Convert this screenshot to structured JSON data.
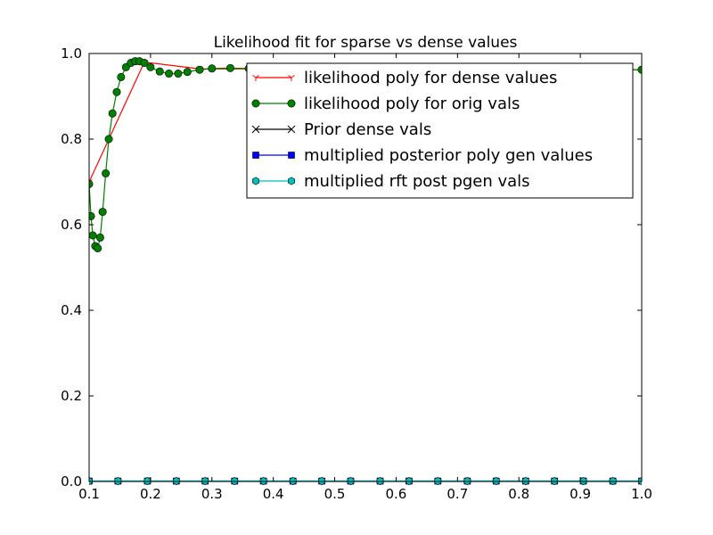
{
  "chart_data": {
    "type": "line",
    "title": "Likelihood fit for sparse vs dense values",
    "xlabel": "",
    "ylabel": "",
    "xlim": [
      0.1,
      1.0
    ],
    "ylim": [
      0.0,
      1.0
    ],
    "x_ticks": [
      "0.1",
      "0.2",
      "0.3",
      "0.4",
      "0.5",
      "0.6",
      "0.7",
      "0.8",
      "0.9",
      "1.0"
    ],
    "y_ticks": [
      "0.0",
      "0.2",
      "0.4",
      "0.6",
      "0.8",
      "1.0"
    ],
    "legend_position": "upper-right",
    "grid": false,
    "series": [
      {
        "name": "likelihood poly for dense values",
        "color": "#ff0000",
        "marker": "tri_down",
        "x": [
          0.1,
          0.19,
          0.28,
          0.37,
          0.46,
          0.55,
          0.64,
          0.73,
          0.82,
          0.91,
          1.0
        ],
        "y": [
          0.7,
          0.98,
          0.964,
          0.964,
          0.964,
          0.964,
          0.964,
          0.964,
          0.964,
          0.964,
          0.962
        ]
      },
      {
        "name": "likelihood poly for orig vals",
        "color": "#008000",
        "marker": "circle",
        "x": [
          0.1,
          0.103,
          0.106,
          0.11,
          0.114,
          0.118,
          0.122,
          0.127,
          0.132,
          0.138,
          0.145,
          0.152,
          0.16,
          0.168,
          0.175,
          0.182,
          0.19,
          0.2,
          0.215,
          0.23,
          0.245,
          0.26,
          0.28,
          0.3,
          0.33,
          0.36,
          0.4,
          0.45,
          0.5,
          0.6,
          0.7,
          0.8,
          0.9,
          1.0
        ],
        "y": [
          0.695,
          0.62,
          0.575,
          0.55,
          0.545,
          0.57,
          0.63,
          0.72,
          0.8,
          0.86,
          0.91,
          0.945,
          0.968,
          0.978,
          0.982,
          0.982,
          0.978,
          0.968,
          0.958,
          0.953,
          0.953,
          0.957,
          0.962,
          0.965,
          0.966,
          0.965,
          0.964,
          0.964,
          0.964,
          0.964,
          0.964,
          0.964,
          0.963,
          0.962
        ]
      },
      {
        "name": "Prior dense vals",
        "color": "#000000",
        "marker": "x",
        "x": [],
        "y": []
      },
      {
        "name": "multiplied posterior poly gen values",
        "color": "#0000ff",
        "marker": "square",
        "x": [
          0.1,
          0.147,
          0.195,
          0.242,
          0.289,
          0.337,
          0.384,
          0.432,
          0.479,
          0.526,
          0.574,
          0.621,
          0.668,
          0.716,
          0.763,
          0.811,
          0.858,
          0.905,
          0.953,
          1.0
        ],
        "y": [
          0.001,
          0.001,
          0.001,
          0.001,
          0.001,
          0.001,
          0.001,
          0.001,
          0.001,
          0.001,
          0.001,
          0.001,
          0.001,
          0.001,
          0.001,
          0.001,
          0.001,
          0.001,
          0.001,
          0.001
        ]
      },
      {
        "name": "multiplied rft post pgen vals",
        "color": "#00bfbf",
        "marker": "hexagon",
        "x": [
          0.1,
          0.147,
          0.195,
          0.242,
          0.289,
          0.337,
          0.384,
          0.432,
          0.479,
          0.526,
          0.574,
          0.621,
          0.668,
          0.716,
          0.763,
          0.811,
          0.858,
          0.905,
          0.953,
          1.0
        ],
        "y": [
          0.001,
          0.001,
          0.001,
          0.001,
          0.001,
          0.001,
          0.001,
          0.001,
          0.001,
          0.001,
          0.001,
          0.001,
          0.001,
          0.001,
          0.001,
          0.001,
          0.001,
          0.001,
          0.001,
          0.001
        ]
      }
    ]
  }
}
